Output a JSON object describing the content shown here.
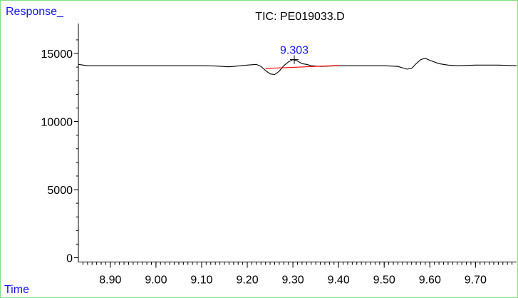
{
  "chart_data": {
    "type": "line",
    "title": "TIC: PE019033.D",
    "ylabel": "Response_",
    "xlabel": "Time",
    "xlim": [
      8.83,
      9.79
    ],
    "ylim": [
      -600,
      17200
    ],
    "y_ticks": [
      0,
      5000,
      10000,
      15000
    ],
    "y_tick_labels": [
      "0",
      "5000",
      "10000",
      "15000"
    ],
    "x_ticks": [
      8.9,
      9.0,
      9.1,
      9.2,
      9.3,
      9.4,
      9.5,
      9.6,
      9.7
    ],
    "x_tick_labels": [
      "8.90",
      "9.00",
      "9.10",
      "9.20",
      "9.30",
      "9.40",
      "9.50",
      "9.60",
      "9.70"
    ],
    "grid": false,
    "series": [
      {
        "color": "#000000",
        "x": [
          8.83,
          8.85,
          8.9,
          8.95,
          9.0,
          9.05,
          9.1,
          9.13,
          9.16,
          9.18,
          9.2,
          9.22,
          9.23,
          9.24,
          9.25,
          9.26,
          9.27,
          9.28,
          9.29,
          9.3,
          9.31,
          9.32,
          9.33,
          9.34,
          9.36,
          9.4,
          9.45,
          9.5,
          9.53,
          9.55,
          9.56,
          9.57,
          9.58,
          9.59,
          9.6,
          9.62,
          9.64,
          9.66,
          9.7,
          9.75,
          9.79
        ],
        "y": [
          14200,
          14100,
          14100,
          14100,
          14100,
          14100,
          14100,
          14080,
          14020,
          14080,
          14150,
          14200,
          14050,
          13750,
          13500,
          13450,
          13700,
          14100,
          14380,
          14550,
          14450,
          14250,
          14200,
          14100,
          14050,
          14100,
          14100,
          14100,
          14050,
          13850,
          13900,
          14250,
          14550,
          14650,
          14500,
          14250,
          14150,
          14100,
          14150,
          14150,
          14100
        ]
      }
    ],
    "baseline": {
      "color": "#ff0000",
      "x": [
        9.24,
        9.4
      ],
      "y": [
        13900,
        14120
      ]
    },
    "annotations": [
      {
        "text": "9.303",
        "x": 9.303,
        "y": 14550,
        "color": "#1414ff"
      }
    ],
    "colors": {
      "axis_labels": "#1414ff",
      "frame": "#7fe07f",
      "trace": "#000000",
      "baseline": "#ff0000"
    }
  }
}
